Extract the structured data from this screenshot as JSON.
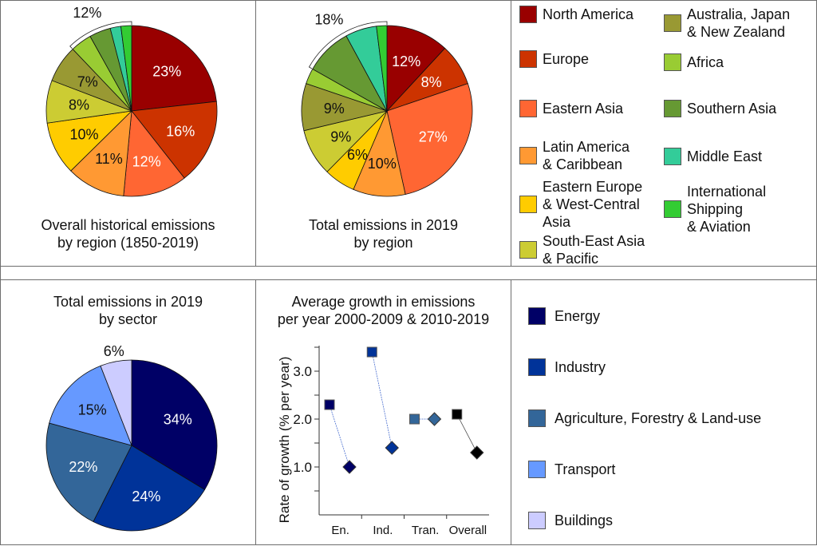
{
  "colors": {
    "regions": {
      "north_america": "#990000",
      "europe": "#cc3300",
      "eastern_asia": "#ff6633",
      "latin_america": "#ff9933",
      "eastern_europe": "#ffcc00",
      "south_east_asia": "#cccc33",
      "australia_japan_nz": "#999933",
      "africa": "#99cc33",
      "southern_asia": "#669933",
      "middle_east": "#33cc99",
      "shipping_aviation": "#33cc33"
    },
    "sectors": {
      "energy": "#000066",
      "industry": "#003399",
      "agriculture": "#336699",
      "transport": "#6699ff",
      "buildings": "#ccccff"
    },
    "overall": "#000000"
  },
  "chart_data": [
    {
      "type": "pie",
      "id": "historical",
      "title": "Overall historical emissions\nby region (1850-2019)",
      "title_lines": [
        "Overall historical emissions",
        "by region (1850-2019)"
      ],
      "unit": "%",
      "slices": [
        {
          "key": "north_america",
          "label": "North America",
          "value": 23,
          "data_label": "23%",
          "label_color": "#ffffff"
        },
        {
          "key": "europe",
          "label": "Europe",
          "value": 16,
          "data_label": "16%",
          "label_color": "#ffffff"
        },
        {
          "key": "eastern_asia",
          "label": "Eastern Asia",
          "value": 12,
          "data_label": "12%",
          "label_color": "#ffffff"
        },
        {
          "key": "latin_america",
          "label": "Latin America & Caribbean",
          "value": 11,
          "data_label": "11%",
          "label_color": "#111111"
        },
        {
          "key": "eastern_europe",
          "label": "Eastern Europe & West-Central Asia",
          "value": 10,
          "data_label": "10%",
          "label_color": "#111111"
        },
        {
          "key": "south_east_asia",
          "label": "South-East Asia & Pacific",
          "value": 8,
          "data_label": "8%",
          "label_color": "#111111"
        },
        {
          "key": "australia_japan_nz",
          "label": "Australia, Japan & New Zealand",
          "value": 7,
          "data_label": "7%",
          "label_color": "#111111"
        },
        {
          "key": "africa",
          "label": "Africa",
          "value": 4,
          "data_label": "",
          "label_color": "#111111"
        },
        {
          "key": "southern_asia",
          "label": "Southern Asia",
          "value": 4,
          "data_label": "",
          "label_color": "#111111"
        },
        {
          "key": "middle_east",
          "label": "Middle East",
          "value": 2,
          "data_label": "",
          "label_color": "#111111"
        },
        {
          "key": "shipping_aviation",
          "label": "International Shipping & Aviation",
          "value": 2,
          "data_label": "",
          "label_color": "#111111"
        }
      ],
      "bracket": {
        "label": "12%",
        "covers": [
          "africa",
          "southern_asia",
          "middle_east",
          "shipping_aviation"
        ]
      }
    },
    {
      "type": "pie",
      "id": "regions_2019",
      "title": "Total emissions in 2019\nby region",
      "title_lines": [
        "Total emissions in 2019",
        "by region"
      ],
      "unit": "%",
      "slices": [
        {
          "key": "north_america",
          "label": "North America",
          "value": 12,
          "data_label": "12%",
          "label_color": "#ffffff"
        },
        {
          "key": "europe",
          "label": "Europe",
          "value": 8,
          "data_label": "8%",
          "label_color": "#ffffff"
        },
        {
          "key": "eastern_asia",
          "label": "Eastern Asia",
          "value": 27,
          "data_label": "27%",
          "label_color": "#ffffff"
        },
        {
          "key": "latin_america",
          "label": "Latin America & Caribbean",
          "value": 10,
          "data_label": "10%",
          "label_color": "#111111"
        },
        {
          "key": "eastern_europe",
          "label": "Eastern Europe & West-Central Asia",
          "value": 6,
          "data_label": "6%",
          "label_color": "#111111"
        },
        {
          "key": "south_east_asia",
          "label": "South-East Asia & Pacific",
          "value": 9,
          "data_label": "9%",
          "label_color": "#111111"
        },
        {
          "key": "australia_japan_nz",
          "label": "Australia, Japan & New Zealand",
          "value": 9,
          "data_label": "9%",
          "label_color": "#111111"
        },
        {
          "key": "africa",
          "label": "Africa",
          "value": 3,
          "data_label": "",
          "label_color": "#111111"
        },
        {
          "key": "southern_asia",
          "label": "Southern Asia",
          "value": 9,
          "data_label": "",
          "label_color": "#111111"
        },
        {
          "key": "middle_east",
          "label": "Middle East",
          "value": 6,
          "data_label": "",
          "label_color": "#111111"
        },
        {
          "key": "shipping_aviation",
          "label": "International Shipping & Aviation",
          "value": 2,
          "data_label": "",
          "label_color": "#111111"
        }
      ],
      "bracket": {
        "label": "18%",
        "covers": [
          "southern_asia",
          "middle_east",
          "shipping_aviation"
        ]
      }
    },
    {
      "type": "pie",
      "id": "sectors_2019",
      "title": "Total emissions in 2019\nby sector",
      "title_lines": [
        "Total emissions in 2019",
        "by sector"
      ],
      "unit": "%",
      "slices": [
        {
          "key": "energy",
          "label": "Energy",
          "value": 34,
          "data_label": "34%",
          "label_color": "#ffffff"
        },
        {
          "key": "industry",
          "label": "Industry",
          "value": 24,
          "data_label": "24%",
          "label_color": "#ffffff"
        },
        {
          "key": "agriculture",
          "label": "Agriculture, Forestry & Land-use",
          "value": 22,
          "data_label": "22%",
          "label_color": "#ffffff"
        },
        {
          "key": "transport",
          "label": "Transport",
          "value": 15,
          "data_label": "15%",
          "label_color": "#111111"
        },
        {
          "key": "buildings",
          "label": "Buildings",
          "value": 6,
          "data_label": "6%",
          "label_color": "#111111",
          "label_outside": true
        }
      ]
    },
    {
      "type": "scatter",
      "id": "growth",
      "title": "Average growth in emissions\nper year 2000-2009 & 2010-2019",
      "title_lines": [
        "Average growth in emissions",
        "per year 2000-2009 & 2010-2019"
      ],
      "xlabel": "",
      "ylabel": "Rate of growth (% per year)",
      "ylim": [
        0,
        3.5
      ],
      "yticks": [
        1.0,
        2.0,
        3.0
      ],
      "yticks_minor": [
        0.5,
        1.5,
        2.5,
        3.5
      ],
      "ytick_labels": [
        "1.0",
        "2.0",
        "3.0"
      ],
      "grid": false,
      "categories": [
        "En.",
        "Ind.",
        "Tran.",
        "Overall"
      ],
      "category_colors": [
        "energy",
        "industry",
        "agriculture",
        "overall"
      ],
      "series": [
        {
          "name": "2000-2009",
          "marker": "square",
          "values": [
            2.3,
            3.4,
            2.0,
            2.1
          ]
        },
        {
          "name": "2010-2019",
          "marker": "diamond",
          "values": [
            1.0,
            1.4,
            2.0,
            1.3
          ]
        }
      ]
    }
  ],
  "region_legend": {
    "columns": [
      [
        {
          "key": "north_america",
          "label": "North America"
        },
        {
          "key": "europe",
          "label": "Europe"
        },
        {
          "key": "eastern_asia",
          "label": "Eastern Asia"
        },
        {
          "key": "latin_america",
          "label": "Latin America\n& Caribbean"
        },
        {
          "key": "eastern_europe",
          "label": "Eastern Europe\n& West-Central\nAsia"
        },
        {
          "key": "south_east_asia",
          "label": "South-East Asia\n& Pacific"
        }
      ],
      [
        {
          "key": "australia_japan_nz",
          "label": "Australia, Japan\n& New Zealand"
        },
        {
          "key": "africa",
          "label": "Africa"
        },
        {
          "key": "southern_asia",
          "label": "Southern Asia"
        },
        {
          "key": "middle_east",
          "label": "Middle East"
        },
        {
          "key": "shipping_aviation",
          "label": "International\nShipping\n& Aviation"
        }
      ]
    ]
  },
  "sector_legend": {
    "items": [
      {
        "key": "energy",
        "label": "Energy"
      },
      {
        "key": "industry",
        "label": "Industry"
      },
      {
        "key": "agriculture",
        "label": "Agriculture, Forestry & Land-use"
      },
      {
        "key": "transport",
        "label": "Transport"
      },
      {
        "key": "buildings",
        "label": "Buildings"
      }
    ]
  }
}
